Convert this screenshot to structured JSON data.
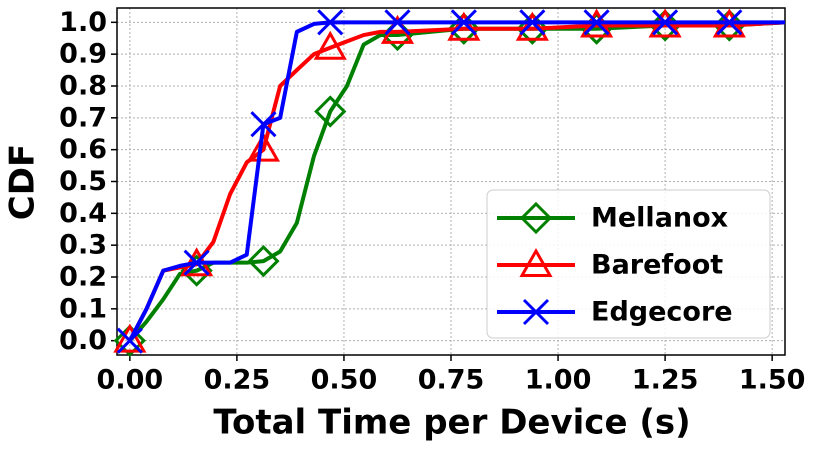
{
  "chart_data": {
    "type": "line",
    "x_label": "Total Time per Device (s)",
    "y_label": "CDF",
    "x": [
      0,
      0.039,
      0.078,
      0.117,
      0.156,
      0.195,
      0.234,
      0.273,
      0.312,
      0.351,
      0.39,
      0.43,
      0.468,
      0.507,
      0.546,
      0.585,
      0.625,
      0.78,
      0.94,
      1.09,
      1.25,
      1.4,
      1.53
    ],
    "markers_at": [
      0,
      4,
      8,
      12,
      16,
      17,
      18,
      19,
      20,
      21
    ],
    "series": [
      {
        "name": "Mellanox",
        "color": "#008000",
        "marker": "diamond",
        "values": [
          0,
          0.06,
          0.13,
          0.21,
          0.22,
          0.245,
          0.245,
          0.245,
          0.25,
          0.28,
          0.37,
          0.58,
          0.72,
          0.8,
          0.93,
          0.96,
          0.96,
          0.98,
          0.98,
          0.98,
          0.99,
          0.99,
          1.0
        ]
      },
      {
        "name": "Barefoot",
        "color": "#ff0000",
        "marker": "triangle",
        "values": [
          0,
          0.1,
          0.22,
          0.23,
          0.24,
          0.31,
          0.46,
          0.56,
          0.6,
          0.8,
          0.85,
          0.9,
          0.92,
          0.94,
          0.96,
          0.97,
          0.97,
          0.98,
          0.98,
          0.99,
          0.99,
          0.99,
          1.0
        ]
      },
      {
        "name": "Edgecore",
        "color": "#0000ff",
        "marker": "x",
        "values": [
          0,
          0.1,
          0.22,
          0.235,
          0.245,
          0.245,
          0.245,
          0.27,
          0.68,
          0.7,
          0.97,
          0.995,
          1.0,
          1.0,
          1.0,
          1.0,
          1.0,
          1.0,
          1.0,
          1.0,
          1.0,
          1.0,
          1.0
        ]
      }
    ],
    "xlim": [
      -0.03,
      1.53
    ],
    "ylim": [
      -0.045,
      1.045
    ],
    "xticks": [
      {
        "value": 0,
        "label": "0.00"
      },
      {
        "value": 0.25,
        "label": "0.25"
      },
      {
        "value": 0.5,
        "label": "0.50"
      },
      {
        "value": 0.75,
        "label": "0.75"
      },
      {
        "value": 1,
        "label": "1.00"
      },
      {
        "value": 1.25,
        "label": "1.25"
      },
      {
        "value": 1.5,
        "label": "1.50"
      }
    ],
    "yticks": [
      {
        "value": 0,
        "label": "0.0"
      },
      0.1,
      0.2,
      0.3,
      0.4,
      0.5,
      0.6,
      0.7,
      0.8,
      0.9,
      {
        "value": 1,
        "label": "1.0"
      }
    ],
    "grid": true,
    "legend": "lower right"
  }
}
